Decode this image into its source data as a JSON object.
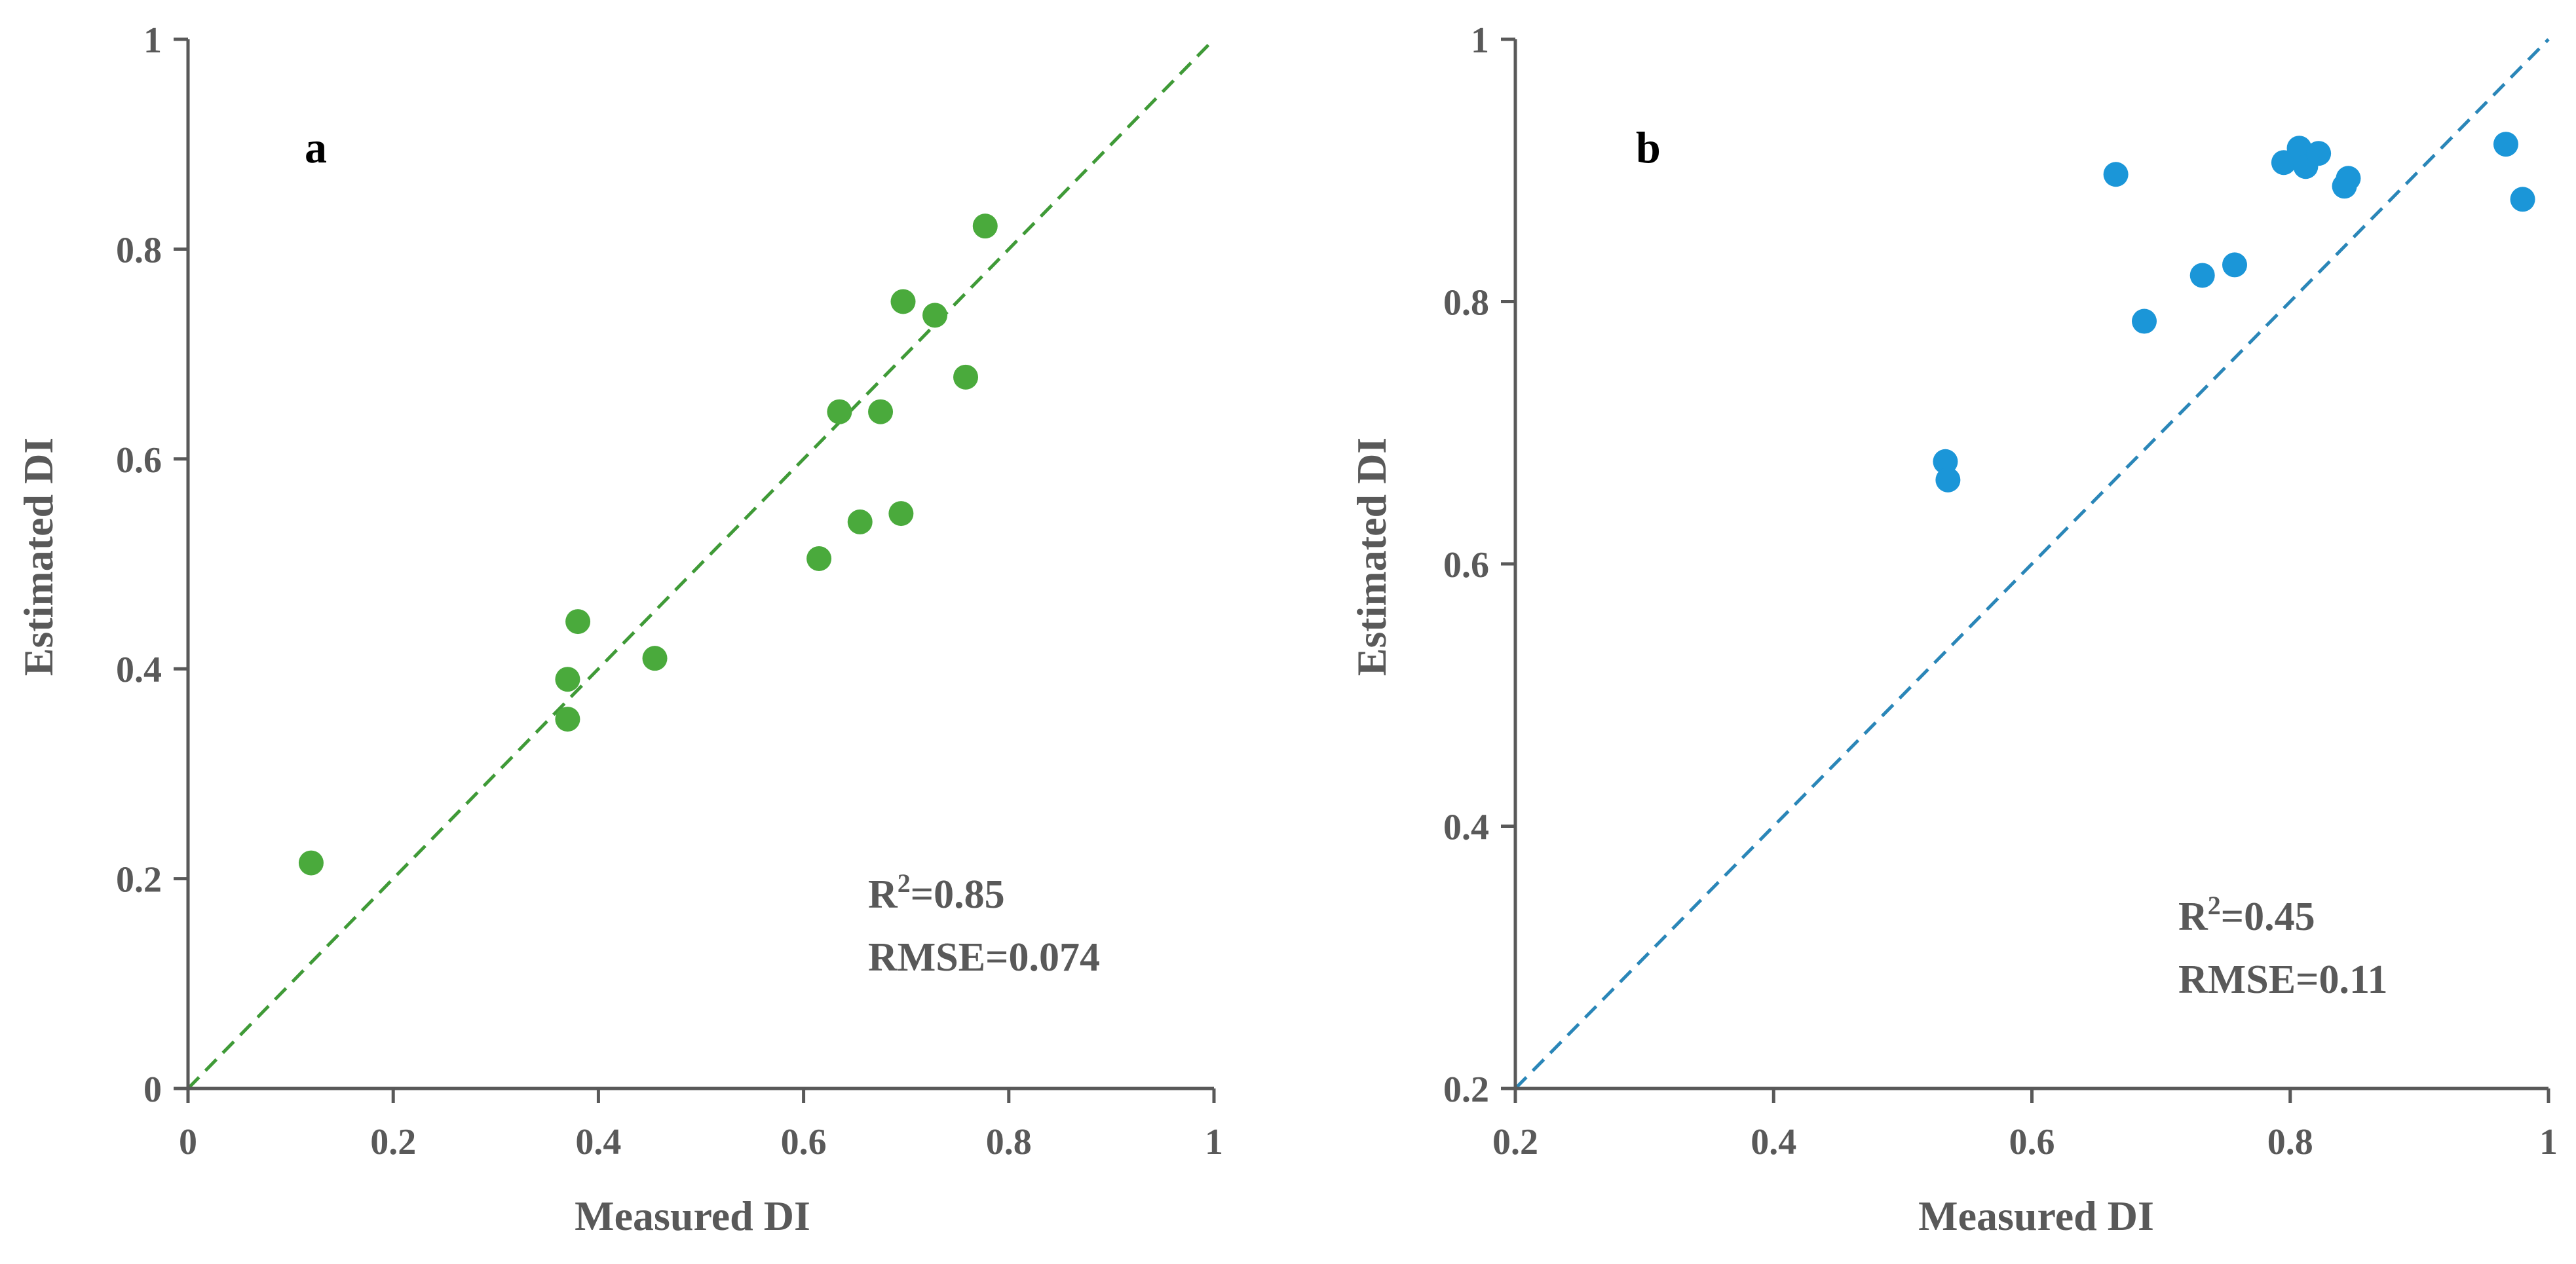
{
  "chart_data": [
    {
      "type": "scatter",
      "panel_label": "a",
      "xlabel": "Measured DI",
      "ylabel": "Estimated DI",
      "xlim": [
        0,
        1
      ],
      "ylim": [
        0,
        1
      ],
      "xticks": [
        0,
        0.2,
        0.4,
        0.6,
        0.8,
        1
      ],
      "yticks": [
        0,
        0.2,
        0.4,
        0.6,
        0.8,
        1
      ],
      "xtick_labels": [
        "0",
        "0.2",
        "0.4",
        "0.6",
        "0.8",
        "1"
      ],
      "ytick_labels": [
        "0",
        "0.2",
        "0.4",
        "0.6",
        "0.8",
        "1"
      ],
      "reference_line": "1:1 dashed",
      "color": "#4aaa3c",
      "line_color": "#3f9a37",
      "r2_label": "R",
      "r2_sup": "2",
      "r2_value": "=0.85",
      "rmse": "RMSE=0.074",
      "points": [
        {
          "x": 0.12,
          "y": 0.215
        },
        {
          "x": 0.37,
          "y": 0.39
        },
        {
          "x": 0.37,
          "y": 0.352
        },
        {
          "x": 0.38,
          "y": 0.445
        },
        {
          "x": 0.455,
          "y": 0.41
        },
        {
          "x": 0.615,
          "y": 0.505
        },
        {
          "x": 0.635,
          "y": 0.645
        },
        {
          "x": 0.655,
          "y": 0.54
        },
        {
          "x": 0.675,
          "y": 0.645
        },
        {
          "x": 0.695,
          "y": 0.548
        },
        {
          "x": 0.697,
          "y": 0.75
        },
        {
          "x": 0.728,
          "y": 0.737
        },
        {
          "x": 0.758,
          "y": 0.678
        },
        {
          "x": 0.777,
          "y": 0.822
        }
      ]
    },
    {
      "type": "scatter",
      "panel_label": "b",
      "xlabel": "Measured DI",
      "ylabel": "Estimated DI",
      "xlim": [
        0.2,
        1
      ],
      "ylim": [
        0.2,
        1
      ],
      "xticks": [
        0.2,
        0.4,
        0.6,
        0.8,
        1
      ],
      "yticks": [
        0.2,
        0.4,
        0.6,
        0.8,
        1
      ],
      "xtick_labels": [
        "0.2",
        "0.4",
        "0.6",
        "0.8",
        "1"
      ],
      "ytick_labels": [
        "0.2",
        "0.4",
        "0.6",
        "0.8",
        "1"
      ],
      "reference_line": "1:1 dashed",
      "color": "#1b96d8",
      "line_color": "#2a86b8",
      "r2_label": "R",
      "r2_sup": "2",
      "r2_value": "=0.45",
      "rmse": "RMSE=0.11",
      "points": [
        {
          "x": 0.533,
          "y": 0.678
        },
        {
          "x": 0.535,
          "y": 0.664
        },
        {
          "x": 0.665,
          "y": 0.897
        },
        {
          "x": 0.687,
          "y": 0.785
        },
        {
          "x": 0.732,
          "y": 0.82
        },
        {
          "x": 0.757,
          "y": 0.828
        },
        {
          "x": 0.795,
          "y": 0.906
        },
        {
          "x": 0.807,
          "y": 0.917
        },
        {
          "x": 0.812,
          "y": 0.903
        },
        {
          "x": 0.822,
          "y": 0.913
        },
        {
          "x": 0.842,
          "y": 0.888
        },
        {
          "x": 0.845,
          "y": 0.894
        },
        {
          "x": 0.967,
          "y": 0.92
        },
        {
          "x": 0.98,
          "y": 0.878
        }
      ]
    }
  ]
}
